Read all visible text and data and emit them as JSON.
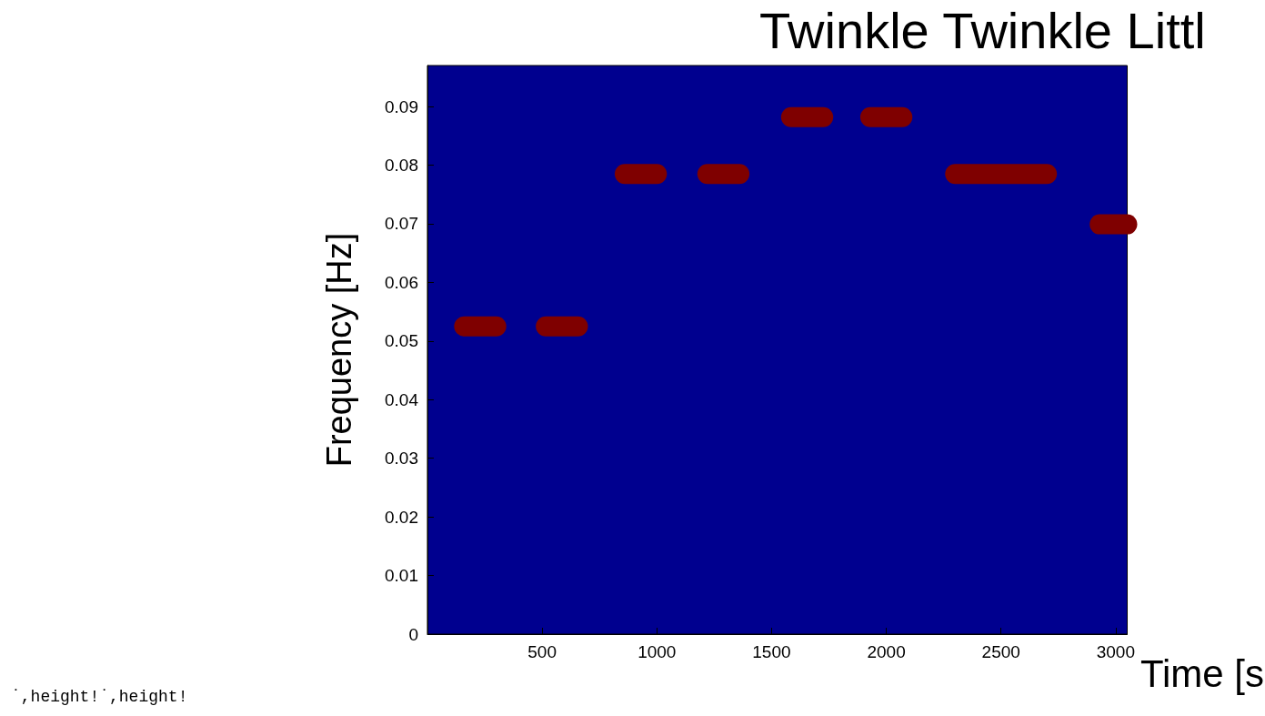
{
  "chart_data": {
    "type": "line",
    "title": "Twinkle Twinkle Littl",
    "xlabel": "Time [s",
    "ylabel": "Frequency [Hz]",
    "annotations": [
      "˙,height!˙,height!"
    ],
    "xlim": [
      0,
      3050
    ],
    "xticks": [
      500,
      1000,
      1500,
      2000,
      2500,
      3000
    ],
    "ylim": [
      0,
      0.097
    ],
    "yticks": [
      0,
      0.01,
      0.02,
      0.03,
      0.04,
      0.05,
      0.06,
      0.07,
      0.08,
      0.09
    ],
    "grid": false,
    "line_style": "solid",
    "series": [
      {
        "color": "#7f0000",
        "x": [
          160,
          300
        ],
        "values": [
          0.0525,
          0.0525
        ]
      },
      {
        "color": "#7f0000",
        "x": [
          516,
          656
        ],
        "values": [
          0.0525,
          0.0525
        ]
      },
      {
        "color": "#7f0000",
        "x": [
          860,
          1000
        ],
        "values": [
          0.0785,
          0.0785
        ]
      },
      {
        "color": "#7f0000",
        "x": [
          1220,
          1360
        ],
        "values": [
          0.0785,
          0.0785
        ]
      },
      {
        "color": "#7f0000",
        "x": [
          1585,
          1725
        ],
        "values": [
          0.0882,
          0.0882
        ]
      },
      {
        "color": "#7f0000",
        "x": [
          1930,
          2070
        ],
        "values": [
          0.0882,
          0.0882
        ]
      },
      {
        "color": "#7f0000",
        "x": [
          2300,
          2700
        ],
        "values": [
          0.0785,
          0.0785
        ]
      },
      {
        "color": "#7f0000",
        "x": [
          2930,
          3050
        ],
        "values": [
          0.0699,
          0.0699
        ]
      }
    ]
  }
}
